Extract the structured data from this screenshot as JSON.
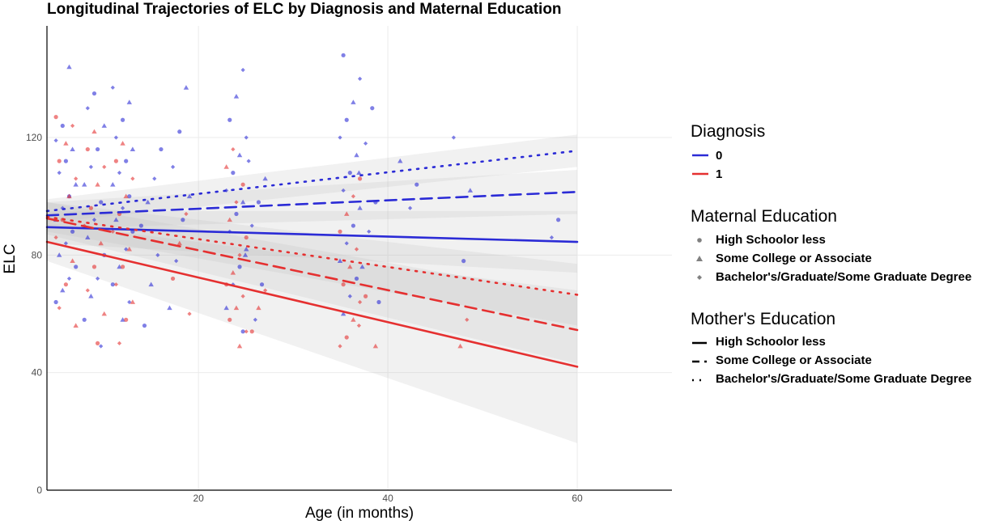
{
  "chart_data": {
    "type": "scatter",
    "title": "Longitudinal Trajectories of ELC by Diagnosis and Maternal Education",
    "xlabel": "Age (in months)",
    "ylabel": "ELC",
    "xlim": [
      4,
      70
    ],
    "ylim": [
      0,
      158
    ],
    "x_ticks": [
      20,
      40,
      60
    ],
    "y_ticks": [
      0,
      40,
      80,
      120
    ],
    "grid": true,
    "legend_position": "right",
    "colors": {
      "0": "#2b2bd6",
      "1": "#e53030"
    },
    "fit_lines": [
      {
        "diagnosis": "0",
        "education": "High Schoolor less",
        "linetype": "solid",
        "x": [
          4,
          60
        ],
        "y": [
          89.5,
          84.5
        ],
        "ci_low": [
          84,
          74
        ],
        "ci_high": [
          95,
          95
        ]
      },
      {
        "diagnosis": "0",
        "education": "Some College or Associate",
        "linetype": "dashed",
        "x": [
          4,
          60
        ],
        "y": [
          93.5,
          101.5
        ],
        "ci_low": [
          89,
          94
        ],
        "ci_high": [
          98,
          109
        ]
      },
      {
        "diagnosis": "0",
        "education": "Bachelor's/Graduate/Some Graduate Degree",
        "linetype": "dotted",
        "x": [
          4,
          60
        ],
        "y": [
          95,
          115.5
        ],
        "ci_low": [
          91,
          110
        ],
        "ci_high": [
          99,
          121
        ]
      },
      {
        "diagnosis": "1",
        "education": "High Schoolor less",
        "linetype": "solid",
        "x": [
          4,
          60
        ],
        "y": [
          84.5,
          42
        ],
        "ci_low": [
          78,
          16
        ],
        "ci_high": [
          91,
          68
        ]
      },
      {
        "diagnosis": "1",
        "education": "Some College or Associate",
        "linetype": "dashed",
        "x": [
          4,
          60
        ],
        "y": [
          92.5,
          54.5
        ],
        "ci_low": [
          87,
          43
        ],
        "ci_high": [
          98,
          66
        ]
      },
      {
        "diagnosis": "1",
        "education": "Bachelor's/Graduate/Some Graduate Degree",
        "linetype": "dotted",
        "x": [
          4,
          60
        ],
        "y": [
          93,
          66.5
        ],
        "ci_low": [
          88,
          56
        ],
        "ci_high": [
          98,
          77
        ]
      }
    ],
    "scatter_groups": [
      {
        "diagnosis": "0",
        "x": 6,
        "y": [
          64,
          68,
          72,
          76,
          80,
          84,
          88,
          92,
          96,
          100,
          104,
          108,
          112,
          116,
          119,
          124,
          144
        ]
      },
      {
        "diagnosis": "1",
        "x": 6,
        "y": [
          56,
          62,
          70,
          78,
          86,
          92,
          100,
          106,
          112,
          118,
          124,
          127
        ]
      },
      {
        "diagnosis": "0",
        "x": 9,
        "y": [
          49,
          58,
          66,
          72,
          80,
          86,
          92,
          98,
          104,
          110,
          116,
          124,
          130,
          135
        ]
      },
      {
        "diagnosis": "1",
        "x": 9,
        "y": [
          50,
          60,
          68,
          76,
          84,
          90,
          96,
          104,
          110,
          116,
          122
        ]
      },
      {
        "diagnosis": "0",
        "x": 12,
        "y": [
          58,
          64,
          70,
          76,
          82,
          88,
          92,
          96,
          100,
          104,
          108,
          112,
          116,
          120,
          126,
          132,
          137
        ]
      },
      {
        "diagnosis": "1",
        "x": 12,
        "y": [
          50,
          58,
          64,
          70,
          76,
          82,
          88,
          94,
          100,
          106,
          112,
          118
        ]
      },
      {
        "diagnosis": "0",
        "x": 15,
        "y": [
          56,
          70,
          80,
          90,
          98,
          106,
          116
        ]
      },
      {
        "diagnosis": "0",
        "x": 18,
        "y": [
          62,
          78,
          92,
          100,
          110,
          122,
          137
        ]
      },
      {
        "diagnosis": "1",
        "x": 18,
        "y": [
          60,
          72,
          84,
          94
        ]
      },
      {
        "diagnosis": "0",
        "x": 24,
        "y": [
          54,
          62,
          70,
          76,
          82,
          88,
          94,
          98,
          102,
          108,
          114,
          120,
          126,
          134,
          143
        ]
      },
      {
        "diagnosis": "1",
        "x": 24,
        "y": [
          49,
          54,
          58,
          62,
          66,
          70,
          74,
          80,
          86,
          92,
          98,
          104,
          110,
          116
        ]
      },
      {
        "diagnosis": "0",
        "x": 26,
        "y": [
          58,
          70,
          80,
          90,
          98,
          106,
          112
        ]
      },
      {
        "diagnosis": "1",
        "x": 26,
        "y": [
          54,
          62,
          68
        ]
      },
      {
        "diagnosis": "0",
        "x": 36,
        "y": [
          60,
          66,
          72,
          78,
          84,
          90,
          96,
          102,
          108,
          114,
          120,
          126,
          132,
          140,
          148
        ]
      },
      {
        "diagnosis": "1",
        "x": 36,
        "y": [
          49,
          52,
          58,
          64,
          70,
          76,
          82,
          88,
          94,
          100,
          106
        ]
      },
      {
        "diagnosis": "0",
        "x": 38,
        "y": [
          64,
          76,
          88,
          98,
          108,
          118,
          130
        ]
      },
      {
        "diagnosis": "1",
        "x": 38,
        "y": [
          49,
          56,
          66
        ]
      },
      {
        "diagnosis": "0",
        "x": 42,
        "y": [
          96,
          104,
          112
        ]
      },
      {
        "diagnosis": "0",
        "x": 48,
        "y": [
          78,
          102,
          120
        ]
      },
      {
        "diagnosis": "1",
        "x": 48,
        "y": [
          49,
          58
        ]
      },
      {
        "diagnosis": "0",
        "x": 58,
        "y": [
          86,
          92
        ]
      }
    ]
  },
  "legend": {
    "diagnosis": {
      "title": "Diagnosis",
      "items": [
        {
          "label": "0",
          "color": "#2b2bd6"
        },
        {
          "label": "1",
          "color": "#e53030"
        }
      ]
    },
    "maternal": {
      "title": "Maternal Education",
      "items": [
        {
          "label": "High Schoolor less",
          "shape": "circle"
        },
        {
          "label": "Some College or Associate",
          "shape": "triangle"
        },
        {
          "label": "Bachelor's/Graduate/Some Graduate Degree",
          "shape": "diamond"
        }
      ]
    },
    "mother": {
      "title": "Mother's Education",
      "items": [
        {
          "label": "High Schoolor less",
          "linetype": "solid"
        },
        {
          "label": "Some College or Associate",
          "linetype": "dashed"
        },
        {
          "label": "Bachelor's/Graduate/Some Graduate Degree",
          "linetype": "dotted"
        }
      ]
    }
  }
}
